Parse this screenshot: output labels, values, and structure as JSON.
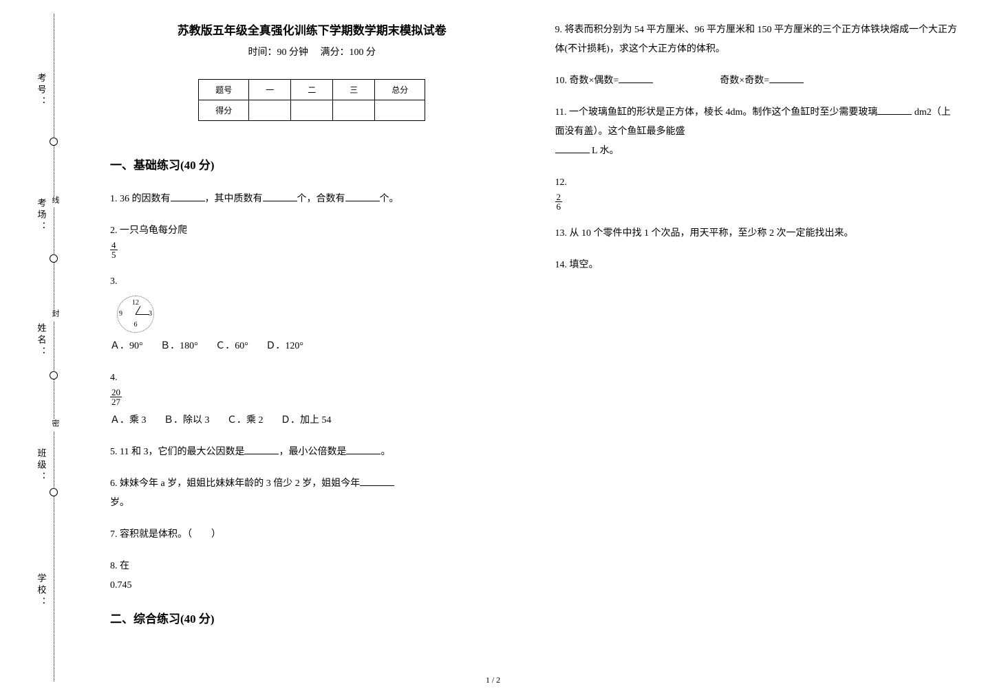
{
  "binding": {
    "vlabels": [
      "考号：",
      "考场：",
      "姓名：",
      "班级：",
      "学校："
    ],
    "seal_chars": [
      "密",
      "封",
      "线"
    ],
    "circle_tops": [
      200,
      370,
      540,
      710
    ],
    "seal_tops": [
      610,
      450,
      285
    ]
  },
  "header": {
    "title": "苏教版五年级全真强化训练下学期数学期末模拟试卷",
    "subtitle_time": "时间：90 分钟",
    "subtitle_full": "满分：100 分"
  },
  "score_table": {
    "cols": [
      "题号",
      "一",
      "二",
      "三",
      "总分"
    ],
    "row_label": "得分"
  },
  "sections": {
    "s1": "一、基础练习(40 分)",
    "s2": "二、综合练习(40 分)"
  },
  "q": {
    "q1_a": "1. 36 的因数有",
    "q1_b": "，其中质数有",
    "q1_c": "个，合数有",
    "q1_d": "个。",
    "q2": "2. 一只乌龟每分爬",
    "q2_frac": {
      "n": "4",
      "d": "5"
    },
    "q3": "3.",
    "q3_clock": {
      "n12": "12",
      "n3": "3",
      "n6": "6",
      "n9": "9"
    },
    "q3_opts": {
      "A": "Ａ．90°",
      "B": "Ｂ．180°",
      "C": "Ｃ．60°",
      "D": "Ｄ．120°"
    },
    "q4": "4.",
    "q4_frac": {
      "n": "20",
      "d": "27"
    },
    "q4_opts": {
      "A": "Ａ．乘 3",
      "B": "Ｂ．除以 3",
      "C": "Ｃ．乘 2",
      "D": "Ｄ．加上 54"
    },
    "q5_a": "5. 11 和 3，它们的最大公因数是",
    "q5_b": "，最小公倍数是",
    "q5_c": "。",
    "q6_a": "6. 妹妹今年 a 岁，姐姐比妹妹年龄的 3 倍少 2 岁，姐姐今年",
    "q6_b": "岁。",
    "q7": "7. 容积就是体积。（　　）",
    "q8": "8. 在",
    "q8b": "0.745",
    "q9": "9. 将表而积分别为 54 平方厘米、96 平方厘米和 150 平方厘米的三个正方体铁块熔成一个大正方体(不计损耗)，求这个大正方体的体积。",
    "q10_a": "10. 奇数×偶数=",
    "q10_b": "奇数×奇数=",
    "q11_a": "11. 一个玻璃鱼缸的形状是正方体，棱长 4dm。制作这个鱼缸时至少需要玻璃",
    "q11_b": " dm2（上面没有盖）。这个鱼缸最多能盛",
    "q11_c": " L 水。",
    "q12": "12.",
    "q12_frac": {
      "n": "2",
      "d": "6"
    },
    "q13": "13. 从 10 个零件中找 1 个次品，用天平称，至少称 2 次一定能找出来。",
    "q14": "14. 填空。"
  },
  "pagenum": "1 / 2"
}
